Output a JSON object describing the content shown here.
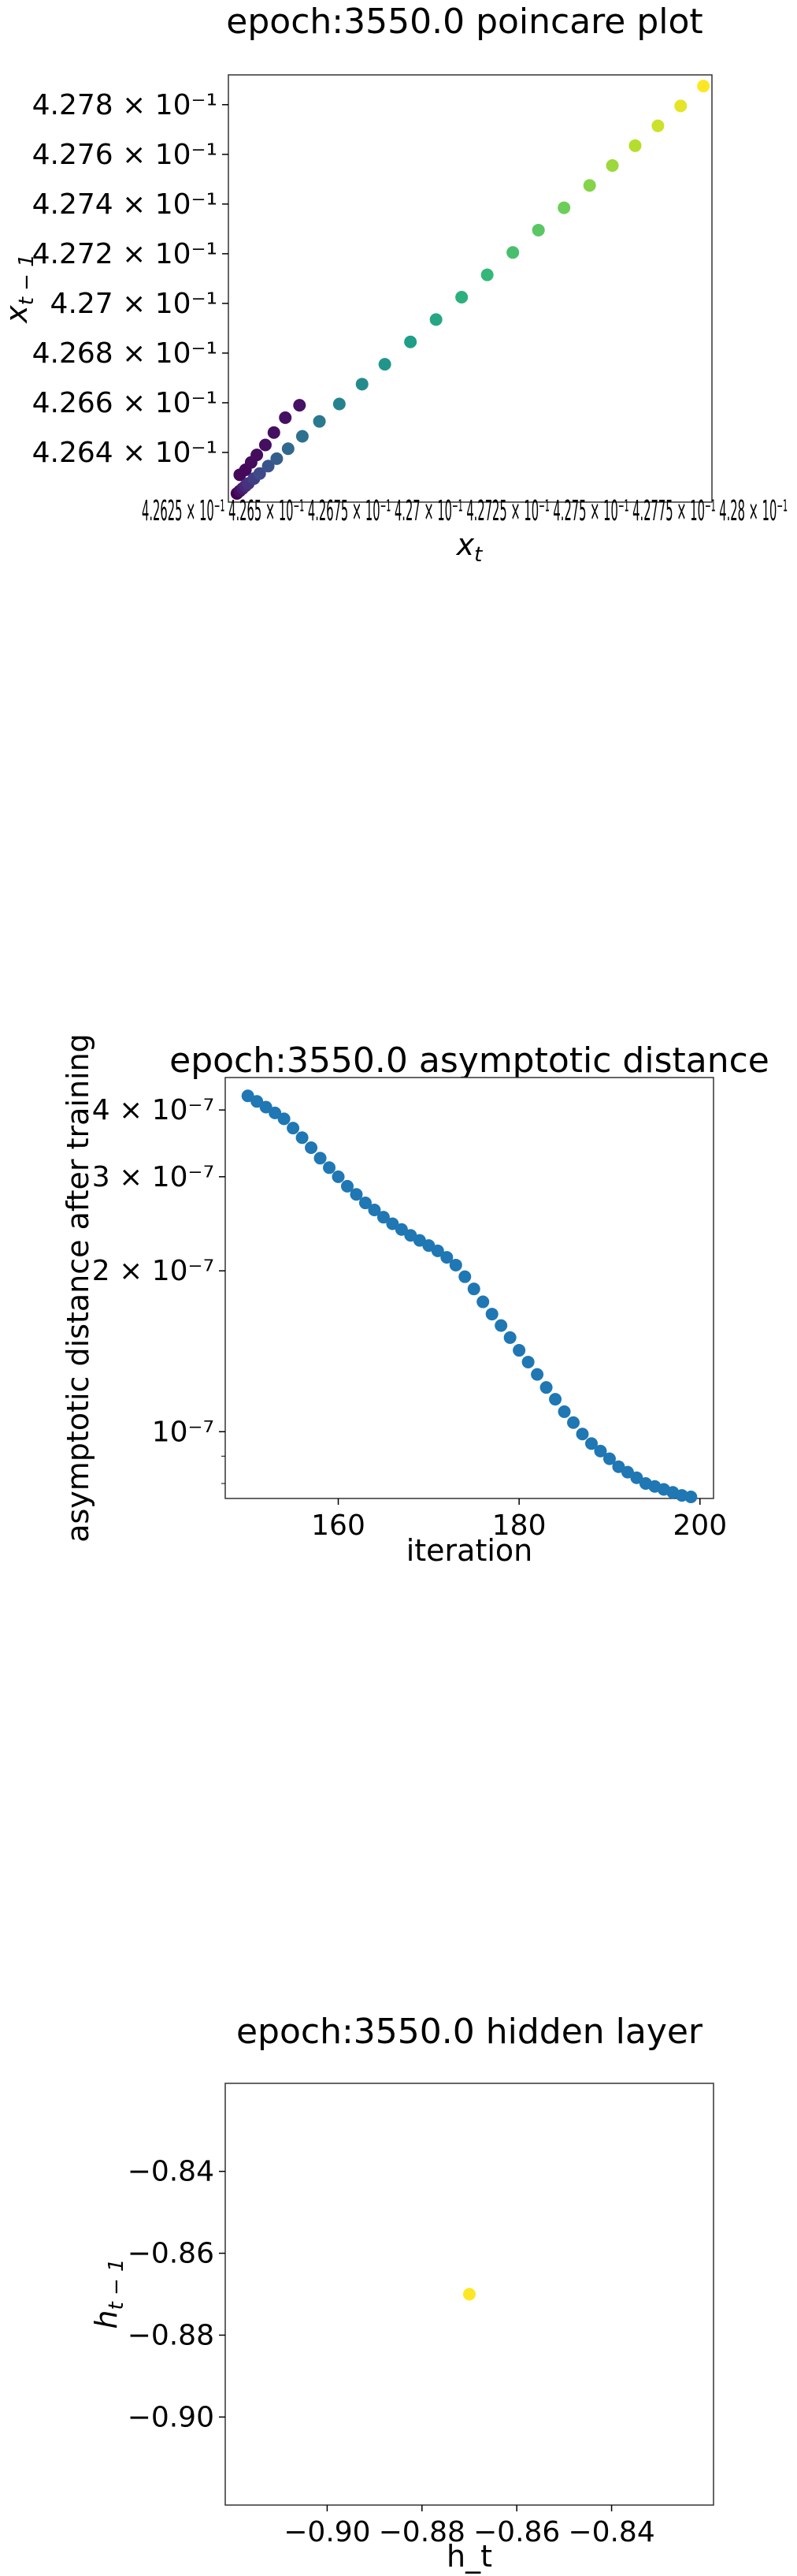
{
  "chart_data": [
    {
      "type": "scatter",
      "title": "epoch:3550.0 poincare plot",
      "xlabel": "x_t",
      "ylabel": "x_{t-1}",
      "xlim": [
        0.42622,
        0.42792
      ],
      "ylim": [
        0.4262,
        0.42792
      ],
      "x_ticks_text": "4.2625 × 10⁻¹ 4.265 × 10⁻¹ 4.2675 × 10⁻¹ 4.27 × 10⁻¹ 4.2725 × 10⁻¹ 4.275 × 10⁻¹ 4.2775 × 10⁻¹ 4.28 × 10⁻¹",
      "y_ticks": [
        {
          "value": 0.4264,
          "label": "4.264 × 10⁻¹"
        },
        {
          "value": 0.4266,
          "label": "4.266 × 10⁻¹"
        },
        {
          "value": 0.4268,
          "label": "4.268 × 10⁻¹"
        },
        {
          "value": 0.427,
          "label": "4.27 × 10⁻¹"
        },
        {
          "value": 0.4272,
          "label": "4.272 × 10⁻¹"
        },
        {
          "value": 0.4274,
          "label": "4.274 × 10⁻¹"
        },
        {
          "value": 0.4276,
          "label": "4.276 × 10⁻¹"
        },
        {
          "value": 0.4278,
          "label": "4.278 × 10⁻¹"
        }
      ],
      "colormap": "viridis",
      "color_note": "points colored by iteration order (purple early → yellow late)",
      "points_upper_branch": [
        [
          0.42626,
          0.42631
        ],
        [
          0.42628,
          0.42633
        ],
        [
          0.4263,
          0.42636
        ],
        [
          0.42632,
          0.42639
        ],
        [
          0.42635,
          0.42643
        ],
        [
          0.42638,
          0.42648
        ],
        [
          0.42642,
          0.42654
        ],
        [
          0.42647,
          0.42659
        ]
      ],
      "points_lower_branch_x": [
        0.42625,
        0.42626,
        0.42627,
        0.42628,
        0.42629,
        0.42631,
        0.42633,
        0.42636,
        0.42639,
        0.42643,
        0.42648,
        0.42654,
        0.42661,
        0.42669,
        0.42677,
        0.42686,
        0.42695,
        0.42704,
        0.42713,
        0.42722,
        0.42731,
        0.4274,
        0.42749,
        0.42757,
        0.42765,
        0.42773,
        0.42781,
        0.42789
      ]
    },
    {
      "type": "scatter",
      "title": "epoch:3550.0 asymptotic distance",
      "xlabel": "iteration",
      "ylabel": "asymptotic distance after training",
      "y_scale": "log",
      "xlim": [
        147.5,
        201.5
      ],
      "ylim": [
        7.5e-08,
        4.6e-07
      ],
      "x_ticks": [
        {
          "value": 160,
          "label": "160"
        },
        {
          "value": 180,
          "label": "180"
        },
        {
          "value": 200,
          "label": "200"
        }
      ],
      "y_ticks": [
        {
          "value": 1e-07,
          "label": "10⁻⁷"
        },
        {
          "value": 2e-07,
          "label": "2 × 10⁻⁷"
        },
        {
          "value": 3e-07,
          "label": "3 × 10⁻⁷"
        },
        {
          "value": 4e-07,
          "label": "4 × 10⁻⁷"
        }
      ],
      "color": "#1f77b4",
      "x": [
        150,
        151,
        152,
        153,
        154,
        155,
        156,
        157,
        158,
        159,
        160,
        161,
        162,
        163,
        164,
        165,
        166,
        167,
        168,
        169,
        170,
        171,
        172,
        173,
        174,
        175,
        176,
        177,
        178,
        179,
        180,
        181,
        182,
        183,
        184,
        185,
        186,
        187,
        188,
        189,
        190,
        191,
        192,
        193,
        194,
        195,
        196,
        197,
        198,
        199
      ],
      "y": [
        4.25e-07,
        4.15e-07,
        4.05e-07,
        3.95e-07,
        3.85e-07,
        3.7e-07,
        3.55e-07,
        3.4e-07,
        3.25e-07,
        3.12e-07,
        3e-07,
        2.88e-07,
        2.78e-07,
        2.68e-07,
        2.6e-07,
        2.52e-07,
        2.45e-07,
        2.39e-07,
        2.33e-07,
        2.28e-07,
        2.23e-07,
        2.18e-07,
        2.12e-07,
        2.05e-07,
        1.95e-07,
        1.85e-07,
        1.75e-07,
        1.66e-07,
        1.58e-07,
        1.5e-07,
        1.42e-07,
        1.35e-07,
        1.28e-07,
        1.21e-07,
        1.15e-07,
        1.09e-07,
        1.04e-07,
        9.9e-08,
        9.5e-08,
        9.2e-08,
        8.9e-08,
        8.6e-08,
        8.4e-08,
        8.2e-08,
        8e-08,
        7.9e-08,
        7.8e-08,
        7.7e-08,
        7.6e-08,
        7.55e-08
      ]
    },
    {
      "type": "scatter",
      "title": "epoch:3550.0 hidden layer",
      "xlabel": "h_t",
      "ylabel": "h_{t-1}",
      "xlim": [
        -0.9215,
        -0.8185
      ],
      "ylim": [
        -0.9215,
        -0.8185
      ],
      "x_ticks": [
        {
          "value": -0.9,
          "label": "−0.90"
        },
        {
          "value": -0.88,
          "label": "−0.88"
        },
        {
          "value": -0.86,
          "label": "−0.86"
        },
        {
          "value": -0.84,
          "label": "−0.84"
        }
      ],
      "y_ticks": [
        {
          "value": -0.84,
          "label": "−0.84"
        },
        {
          "value": -0.86,
          "label": "−0.86"
        },
        {
          "value": -0.88,
          "label": "−0.88"
        },
        {
          "value": -0.9,
          "label": "−0.90"
        }
      ],
      "color": "#fde725",
      "points": [
        [
          -0.87,
          -0.87
        ]
      ]
    }
  ]
}
